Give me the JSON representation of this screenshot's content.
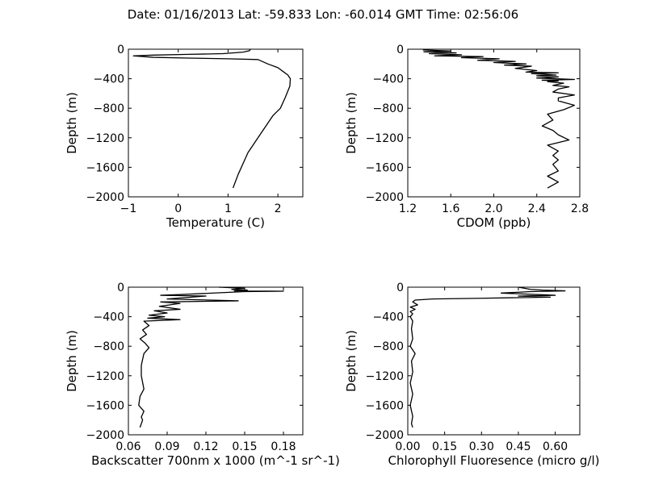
{
  "suptitle": "Date: 01/16/2013  Lat:  -59.833 Lon:  -60.014  GMT Time: 02:56:06",
  "line_color": "#000000",
  "chart_data": [
    {
      "type": "line",
      "xlabel": "Temperature (C)",
      "ylabel": "Depth (m)",
      "xlim": [
        -1,
        2.5
      ],
      "ylim": [
        -2000,
        0
      ],
      "xticks": [
        -1,
        0,
        1,
        2
      ],
      "xtick_labels": [
        "−1",
        "0",
        "1",
        "2"
      ],
      "yticks": [
        0,
        -400,
        -800,
        -1200,
        -1600,
        -2000
      ],
      "ytick_labels": [
        "0",
        "−400",
        "−800",
        "−1200",
        "−1600",
        "−2000"
      ],
      "series": [
        {
          "x": [
            1.45,
            1.43,
            1.3,
            0.9,
            0.2,
            -0.5,
            -0.9,
            -0.5,
            0.2,
            1.0,
            1.6,
            1.8,
            2.0,
            2.1,
            2.2,
            2.25,
            2.24,
            2.15,
            2.05,
            1.9,
            1.8,
            1.7,
            1.6,
            1.5,
            1.4,
            1.3,
            1.2,
            1.1
          ],
          "y": [
            0,
            -20,
            -40,
            -60,
            -70,
            -80,
            -90,
            -110,
            -120,
            -130,
            -140,
            -200,
            -250,
            -300,
            -350,
            -400,
            -500,
            -650,
            -800,
            -900,
            -1000,
            -1100,
            -1200,
            -1300,
            -1400,
            -1550,
            -1700,
            -1880
          ]
        }
      ]
    },
    {
      "type": "line",
      "xlabel": "CDOM (ppb)",
      "ylabel": "Depth (m)",
      "xlim": [
        1.2,
        2.8
      ],
      "ylim": [
        -2000,
        0
      ],
      "xticks": [
        1.2,
        1.6,
        2.0,
        2.4,
        2.8
      ],
      "xtick_labels": [
        "1.2",
        "1.6",
        "2.0",
        "2.4",
        "2.8"
      ],
      "yticks": [
        0,
        -400,
        -800,
        -1200,
        -1600,
        -2000
      ],
      "ytick_labels": [
        "0",
        "−400",
        "−800",
        "−1200",
        "−1600",
        "−2000"
      ],
      "series": [
        {
          "x": [
            1.34,
            1.6,
            1.35,
            1.65,
            1.4,
            1.7,
            1.45,
            1.9,
            1.7,
            2.05,
            1.85,
            2.2,
            2.0,
            2.3,
            2.1,
            2.35,
            2.2,
            2.4,
            2.3,
            2.6,
            2.35,
            2.58,
            2.4,
            2.6,
            2.4,
            2.75,
            2.45,
            2.6,
            2.5,
            2.65,
            2.55,
            2.7,
            2.6,
            2.55,
            2.75,
            2.6,
            2.6,
            2.75,
            2.65,
            2.5,
            2.55,
            2.45,
            2.55,
            2.6,
            2.7,
            2.5,
            2.6,
            2.55,
            2.6,
            2.55,
            2.6,
            2.5,
            2.6,
            2.5
          ],
          "y": [
            -10,
            -25,
            -35,
            -50,
            -60,
            -75,
            -90,
            -100,
            -115,
            -130,
            -150,
            -165,
            -180,
            -200,
            -215,
            -230,
            -260,
            -290,
            -310,
            -320,
            -330,
            -350,
            -360,
            -375,
            -390,
            -410,
            -420,
            -430,
            -440,
            -460,
            -490,
            -510,
            -540,
            -580,
            -620,
            -660,
            -700,
            -760,
            -820,
            -880,
            -960,
            -1040,
            -1100,
            -1160,
            -1230,
            -1300,
            -1380,
            -1440,
            -1500,
            -1560,
            -1650,
            -1720,
            -1800,
            -1880
          ]
        }
      ]
    },
    {
      "type": "line",
      "xlabel": "Backscatter 700nm x 1000 (m^-1 sr^-1)",
      "ylabel": "Depth (m)",
      "xlim": [
        0.06,
        0.195
      ],
      "ylim": [
        -2000,
        0
      ],
      "xticks": [
        0.06,
        0.09,
        0.12,
        0.15,
        0.18
      ],
      "xtick_labels": [
        "0.06",
        "0.09",
        "0.12",
        "0.15",
        "0.18"
      ],
      "yticks": [
        0,
        -400,
        -800,
        -1200,
        -1600,
        -2000
      ],
      "ytick_labels": [
        "0",
        "−400",
        "−800",
        "−1200",
        "−1600",
        "−2000"
      ],
      "series": [
        {
          "x": [
            0.13,
            0.15,
            0.14,
            0.152,
            0.142,
            0.18,
            0.15,
            0.1,
            0.085,
            0.12,
            0.09,
            0.145,
            0.085,
            0.1,
            0.084,
            0.1,
            0.08,
            0.09,
            0.076,
            0.088,
            0.075,
            0.1,
            0.072,
            0.076,
            0.071,
            0.074,
            0.069,
            0.073,
            0.076,
            0.072,
            0.071,
            0.07,
            0.07,
            0.072,
            0.069,
            0.068,
            0.072,
            0.07,
            0.071,
            0.069
          ],
          "y": [
            0,
            -15,
            -30,
            -40,
            -50,
            -55,
            -60,
            -100,
            -110,
            -120,
            -160,
            -185,
            -200,
            -220,
            -260,
            -300,
            -320,
            -350,
            -380,
            -400,
            -420,
            -440,
            -460,
            -520,
            -580,
            -640,
            -700,
            -760,
            -820,
            -900,
            -980,
            -1060,
            -1200,
            -1380,
            -1480,
            -1600,
            -1680,
            -1760,
            -1800,
            -1900
          ]
        }
      ]
    },
    {
      "type": "line",
      "xlabel": "Chlorophyll Fluoresence (micro g/l)",
      "ylabel": "Depth (m)",
      "xlim": [
        0,
        0.7
      ],
      "ylim": [
        -2000,
        0
      ],
      "xticks": [
        0,
        0.15,
        0.3,
        0.45,
        0.6
      ],
      "xtick_labels": [
        "0.00",
        "0.15",
        "0.30",
        "0.45",
        "0.60"
      ],
      "yticks": [
        0,
        -400,
        -800,
        -1200,
        -1600,
        -2000
      ],
      "ytick_labels": [
        "0",
        "−400",
        "−800",
        "−1200",
        "−1600",
        "−2000"
      ],
      "series": [
        {
          "x": [
            0.45,
            0.5,
            0.55,
            0.64,
            0.5,
            0.38,
            0.6,
            0.45,
            0.58,
            0.3,
            0.1,
            0.03,
            0.02,
            0.04,
            0.01,
            0.03,
            0.01,
            0.02,
            0.01,
            0.02,
            0.015,
            0.02,
            0.01,
            0.03,
            0.015,
            0.02,
            0.01,
            0.02,
            0.01,
            0.02,
            0.015,
            0.02
          ],
          "y": [
            0,
            -30,
            -40,
            -50,
            -60,
            -80,
            -110,
            -120,
            -135,
            -150,
            -160,
            -175,
            -200,
            -240,
            -270,
            -300,
            -330,
            -360,
            -400,
            -460,
            -560,
            -700,
            -800,
            -900,
            -1000,
            -1150,
            -1300,
            -1450,
            -1600,
            -1750,
            -1850,
            -1900
          ]
        }
      ]
    }
  ]
}
